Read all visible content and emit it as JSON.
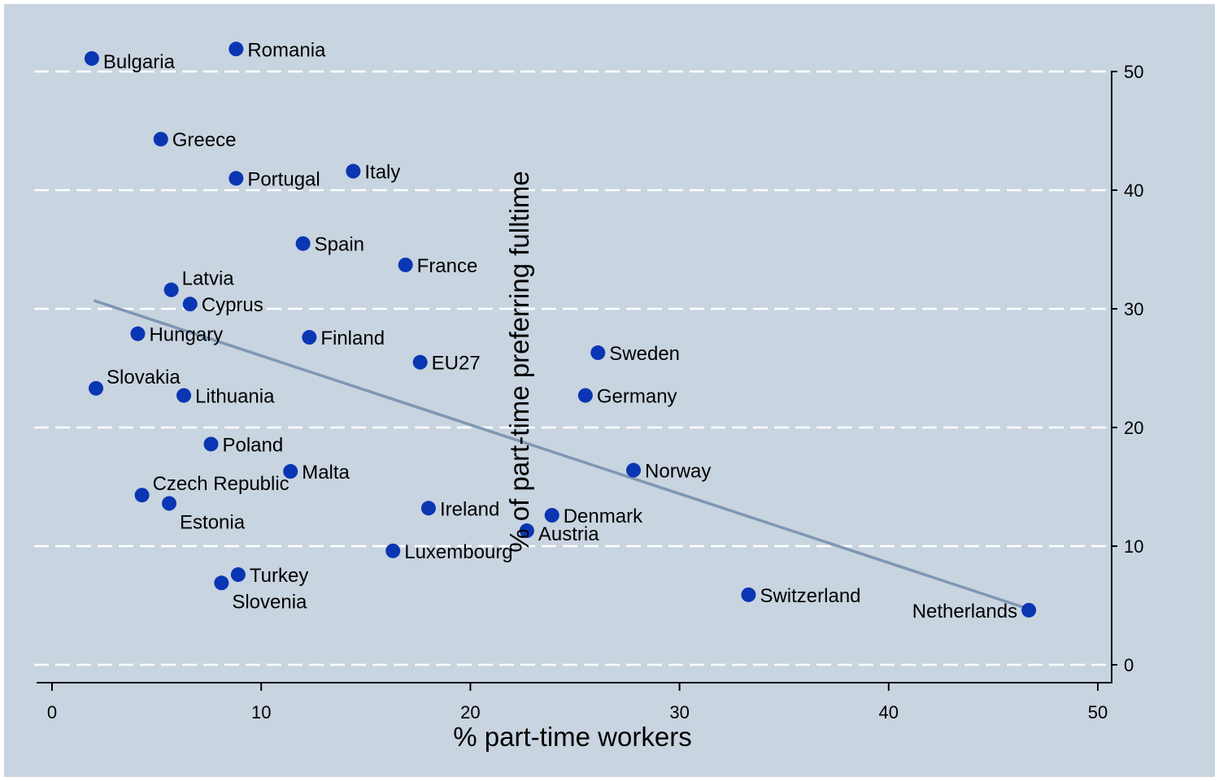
{
  "chart_data": {
    "type": "scatter",
    "xlabel": "% part-time workers",
    "ylabel": "% of part-time preferring fulltime",
    "xlim": [
      0,
      50
    ],
    "ylim": [
      0,
      50
    ],
    "x_ticks": [
      "0",
      "10",
      "20",
      "30",
      "40",
      "50"
    ],
    "y_ticks": [
      "0",
      "10",
      "20",
      "30",
      "40",
      "50"
    ],
    "grid": "horizontal dashed",
    "colors": {
      "background": "#c8d4df",
      "plot": "#c8d4df",
      "marker": "#0a36b4",
      "fit_line": "#7f97b3",
      "grid": "#ffffff"
    },
    "fit_line": {
      "x": [
        2.0,
        46.7
      ],
      "y": [
        30.7,
        4.7
      ]
    },
    "points": [
      {
        "label": "Bulgaria",
        "x": 1.9,
        "y": 51.1,
        "pos": "right-low"
      },
      {
        "label": "Romania",
        "x": 8.8,
        "y": 51.9,
        "pos": "right"
      },
      {
        "label": "Greece",
        "x": 5.2,
        "y": 44.3,
        "pos": "right"
      },
      {
        "label": "Italy",
        "x": 14.4,
        "y": 41.6,
        "pos": "right"
      },
      {
        "label": "Portugal",
        "x": 8.8,
        "y": 41.0,
        "pos": "right"
      },
      {
        "label": "Spain",
        "x": 12.0,
        "y": 35.5,
        "pos": "right"
      },
      {
        "label": "France",
        "x": 16.9,
        "y": 33.7,
        "pos": "right"
      },
      {
        "label": "Latvia",
        "x": 5.7,
        "y": 31.6,
        "pos": "right-high"
      },
      {
        "label": "Cyprus",
        "x": 6.6,
        "y": 30.4,
        "pos": "right"
      },
      {
        "label": "Hungary",
        "x": 4.1,
        "y": 27.9,
        "pos": "right"
      },
      {
        "label": "Finland",
        "x": 12.3,
        "y": 27.6,
        "pos": "right"
      },
      {
        "label": "Sweden",
        "x": 26.1,
        "y": 26.3,
        "pos": "right"
      },
      {
        "label": "EU27",
        "x": 17.6,
        "y": 25.5,
        "pos": "right"
      },
      {
        "label": "Slovakia",
        "x": 2.1,
        "y": 23.3,
        "pos": "right-high"
      },
      {
        "label": "Lithuania",
        "x": 6.3,
        "y": 22.7,
        "pos": "right"
      },
      {
        "label": "Germany",
        "x": 25.5,
        "y": 22.7,
        "pos": "right"
      },
      {
        "label": "Poland",
        "x": 7.6,
        "y": 18.6,
        "pos": "right"
      },
      {
        "label": "Norway",
        "x": 27.8,
        "y": 16.4,
        "pos": "right"
      },
      {
        "label": "Malta",
        "x": 11.4,
        "y": 16.3,
        "pos": "right"
      },
      {
        "label": "Czech Republic",
        "x": 4.3,
        "y": 14.3,
        "pos": "right-high"
      },
      {
        "label": "Estonia",
        "x": 5.6,
        "y": 13.6,
        "pos": "right-below"
      },
      {
        "label": "Ireland",
        "x": 18.0,
        "y": 13.2,
        "pos": "right"
      },
      {
        "label": "Denmark",
        "x": 23.9,
        "y": 12.6,
        "pos": "right"
      },
      {
        "label": "Austria",
        "x": 22.7,
        "y": 11.3,
        "pos": "right-low"
      },
      {
        "label": "Luxembourg",
        "x": 16.3,
        "y": 9.6,
        "pos": "right"
      },
      {
        "label": "Turkey",
        "x": 8.9,
        "y": 7.6,
        "pos": "right"
      },
      {
        "label": "Slovenia",
        "x": 8.1,
        "y": 6.9,
        "pos": "below"
      },
      {
        "label": "Switzerland",
        "x": 33.3,
        "y": 5.9,
        "pos": "right"
      },
      {
        "label": "Netherlands",
        "x": 46.7,
        "y": 4.6,
        "pos": "left"
      }
    ]
  }
}
